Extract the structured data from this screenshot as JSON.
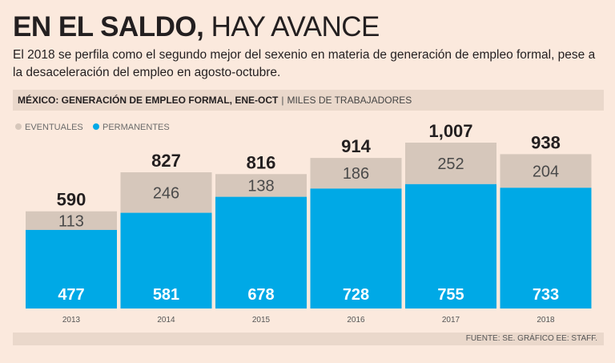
{
  "headline": {
    "bold": "EN EL SALDO,",
    "light": "HAY AVANCE"
  },
  "subtitle": "El 2018 se perfila como el segundo mejor del sexenio en materia de generación de empleo formal, pese a la desaceleración del empleo en agosto-octubre.",
  "section": {
    "title": "MÉXICO: GENERACIÓN DE EMPLEO FORMAL, ENE-OCT",
    "separator": "|",
    "units": "MILES DE TRABAJADORES"
  },
  "source": "FUENTE: SE. GRÁFICO EE: STAFF.",
  "chart_data": {
    "type": "bar",
    "stacked": true,
    "categories": [
      "2013",
      "2014",
      "2015",
      "2016",
      "2017",
      "2018"
    ],
    "series": [
      {
        "name": "PERMANENTES",
        "color": "#00a9e6",
        "values": [
          477,
          581,
          678,
          728,
          755,
          733
        ]
      },
      {
        "name": "EVENTUALES",
        "color": "#d6c7bb",
        "values": [
          113,
          246,
          138,
          186,
          252,
          204
        ]
      }
    ],
    "totals": [
      "590",
      "827",
      "816",
      "914",
      "1,007",
      "938"
    ],
    "ylim": [
      0,
      1007
    ],
    "legend_position": "top-left",
    "grid": false
  }
}
